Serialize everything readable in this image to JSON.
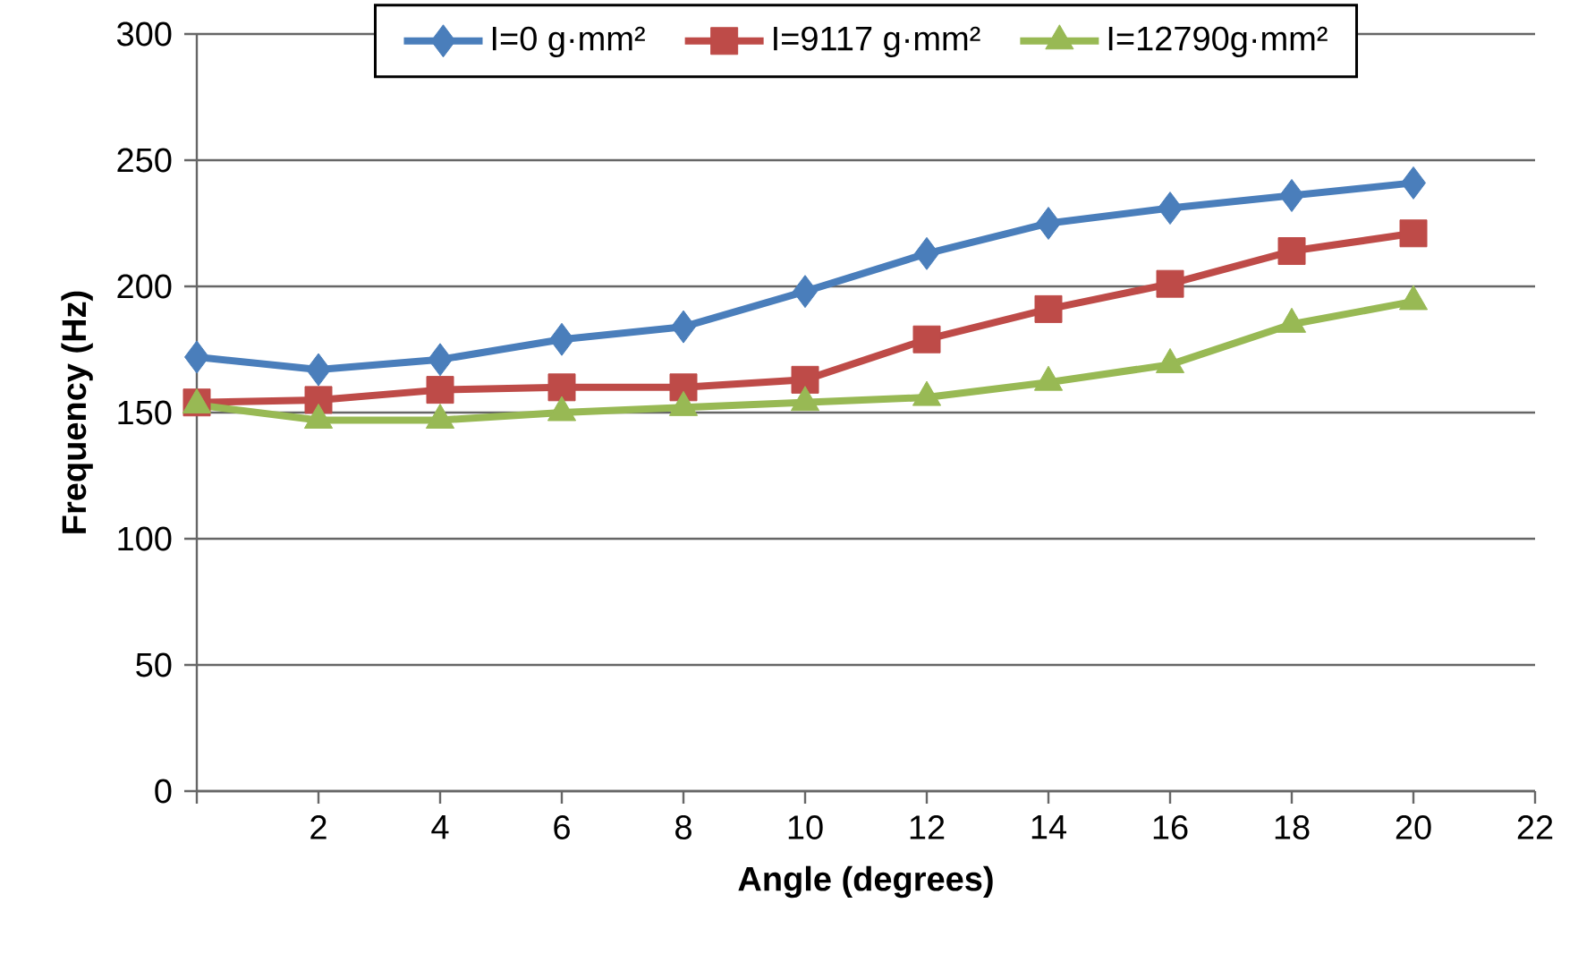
{
  "chart_data": {
    "type": "line",
    "xlabel": "Angle (degrees)",
    "ylabel": "Frequency (Hz)",
    "x": [
      0,
      2,
      4,
      6,
      8,
      10,
      12,
      14,
      16,
      18,
      20
    ],
    "series": [
      {
        "name": "I=0 g·mm²",
        "color": "#4a7ebb",
        "marker": "diamond",
        "values": [
          172,
          167,
          171,
          179,
          184,
          198,
          213,
          225,
          231,
          236,
          241
        ]
      },
      {
        "name": "I=9117 g·mm²",
        "color": "#be4b48",
        "marker": "square",
        "values": [
          154,
          155,
          159,
          160,
          160,
          163,
          179,
          191,
          201,
          214,
          221
        ]
      },
      {
        "name": "I=12790g·mm²",
        "color": "#98b954",
        "marker": "triangle",
        "values": [
          153,
          147,
          147,
          150,
          152,
          154,
          156,
          162,
          169,
          185,
          194
        ]
      }
    ],
    "xlim": [
      0,
      22
    ],
    "xticks": [
      {
        "value": 0,
        "label": null
      },
      2,
      4,
      6,
      8,
      10,
      12,
      14,
      16,
      18,
      20,
      22
    ],
    "ylim": [
      0,
      300
    ],
    "yticks": [
      0,
      50,
      100,
      150,
      200,
      250,
      300
    ],
    "grid": "y",
    "legend": "top",
    "line_style": "solid"
  }
}
